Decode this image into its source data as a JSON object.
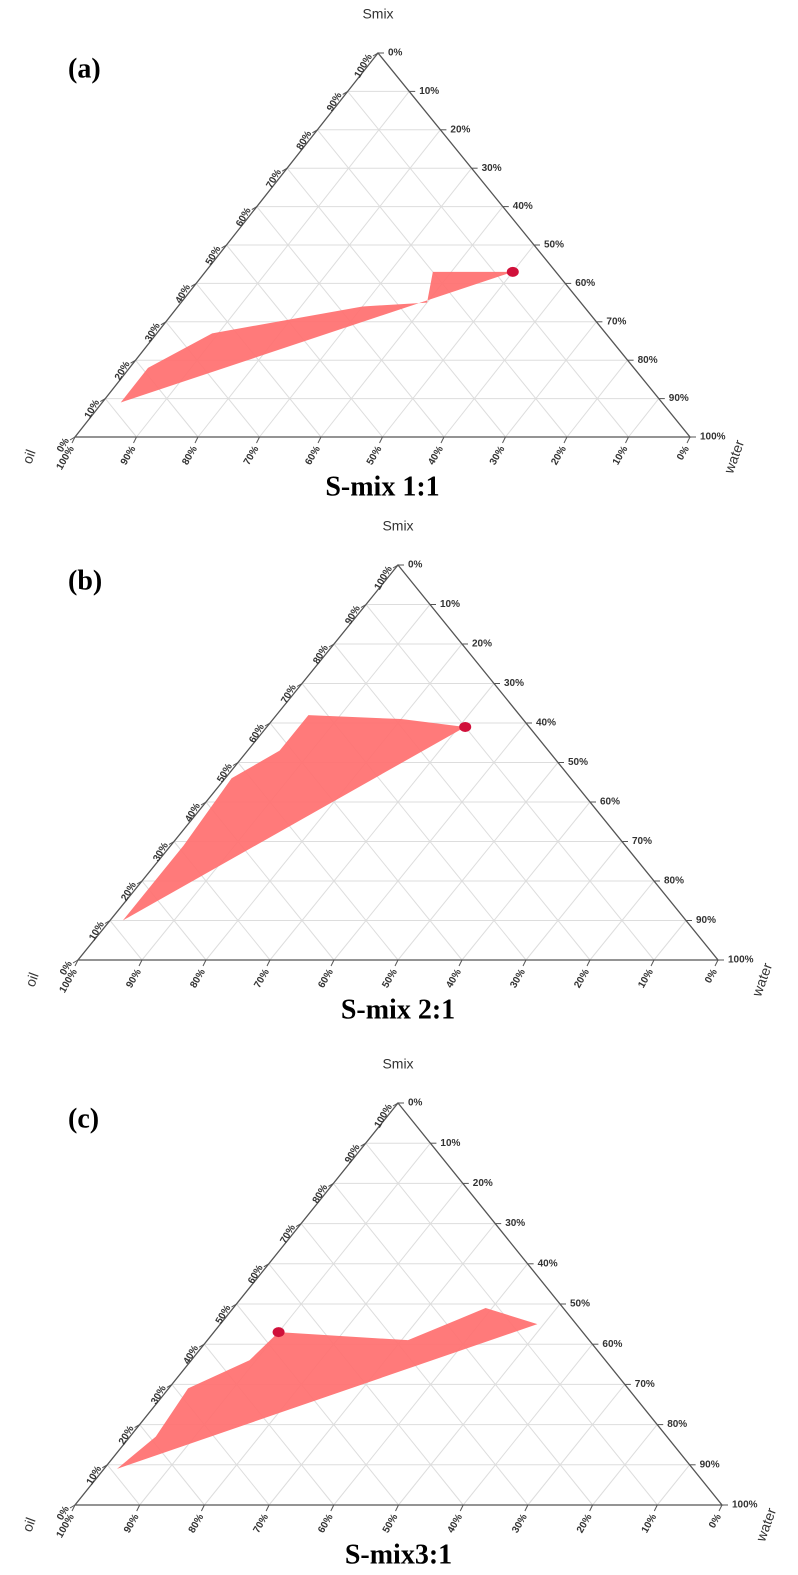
{
  "charts": [
    {
      "type": "ternary",
      "panel": "(a)",
      "title": "S-mix 1:1",
      "top_label": "Smix",
      "left_label": "oil",
      "right_label": "water",
      "ticks": [
        {
          "value": 0,
          "label": "0%"
        },
        {
          "value": 10,
          "label": "10%"
        },
        {
          "value": 20,
          "label": "20%"
        },
        {
          "value": 30,
          "label": "30%"
        },
        {
          "value": 40,
          "label": "40%"
        },
        {
          "value": 50,
          "label": "50%"
        },
        {
          "value": 60,
          "label": "60%"
        },
        {
          "value": 70,
          "label": "70%"
        },
        {
          "value": 80,
          "label": "80%"
        },
        {
          "value": 90,
          "label": "90%"
        },
        {
          "value": 100,
          "label": "100%"
        }
      ],
      "grid": true,
      "region_color": "#ff6f6f",
      "point_color": "#d0103a",
      "region": {
        "smix": [
          9,
          18,
          27,
          34,
          35,
          43,
          43
        ],
        "water": [
          3,
          3,
          9,
          30,
          40,
          37,
          50
        ],
        "oil": [
          88,
          79,
          64,
          36,
          25,
          20,
          7
        ]
      },
      "point": {
        "smix": 43,
        "water": 50,
        "oil": 7
      }
    },
    {
      "type": "ternary",
      "panel": "(b)",
      "title": "S-mix 2:1",
      "top_label": "Smix",
      "left_label": "oil",
      "right_label": "water",
      "ticks": [
        {
          "value": 0,
          "label": "0%"
        },
        {
          "value": 10,
          "label": "10%"
        },
        {
          "value": 20,
          "label": "20%"
        },
        {
          "value": 30,
          "label": "30%"
        },
        {
          "value": 40,
          "label": "40%"
        },
        {
          "value": 50,
          "label": "50%"
        },
        {
          "value": 60,
          "label": "60%"
        },
        {
          "value": 70,
          "label": "70%"
        },
        {
          "value": 80,
          "label": "80%"
        },
        {
          "value": 90,
          "label": "90%"
        },
        {
          "value": 100,
          "label": "100%"
        }
      ],
      "grid": true,
      "region_color": "#ff6f6f",
      "point_color": "#d0103a",
      "region": {
        "smix": [
          10,
          29,
          46,
          53,
          62,
          61,
          59
        ],
        "water": [
          2,
          2,
          1,
          5,
          5,
          20,
          31
        ],
        "oil": [
          88,
          69,
          53,
          42,
          33,
          19,
          10
        ]
      },
      "point": {
        "smix": 59,
        "water": 31,
        "oil": 10
      }
    },
    {
      "type": "ternary",
      "panel": "(c)",
      "title": "S-mix3:1",
      "top_label": "Smix",
      "left_label": "oil",
      "right_label": "water",
      "ticks": [
        {
          "value": 0,
          "label": "0%"
        },
        {
          "value": 10,
          "label": "10%"
        },
        {
          "value": 20,
          "label": "20%"
        },
        {
          "value": 30,
          "label": "30%"
        },
        {
          "value": 40,
          "label": "40%"
        },
        {
          "value": 50,
          "label": "50%"
        },
        {
          "value": 60,
          "label": "60%"
        },
        {
          "value": 70,
          "label": "70%"
        },
        {
          "value": 80,
          "label": "80%"
        },
        {
          "value": 90,
          "label": "90%"
        },
        {
          "value": 100,
          "label": "100%"
        }
      ],
      "grid": true,
      "region_color": "#ff6f6f",
      "point_color": "#d0103a",
      "region": {
        "smix": [
          9,
          17,
          29,
          36,
          43,
          41,
          46,
          49,
          45
        ],
        "water": [
          2,
          4,
          3,
          9,
          10,
          31,
          36,
          39,
          49
        ],
        "oil": [
          89,
          79,
          68,
          55,
          47,
          28,
          18,
          12,
          6
        ]
      },
      "point": {
        "smix": 43,
        "water": 10,
        "oil": 47
      }
    }
  ]
}
